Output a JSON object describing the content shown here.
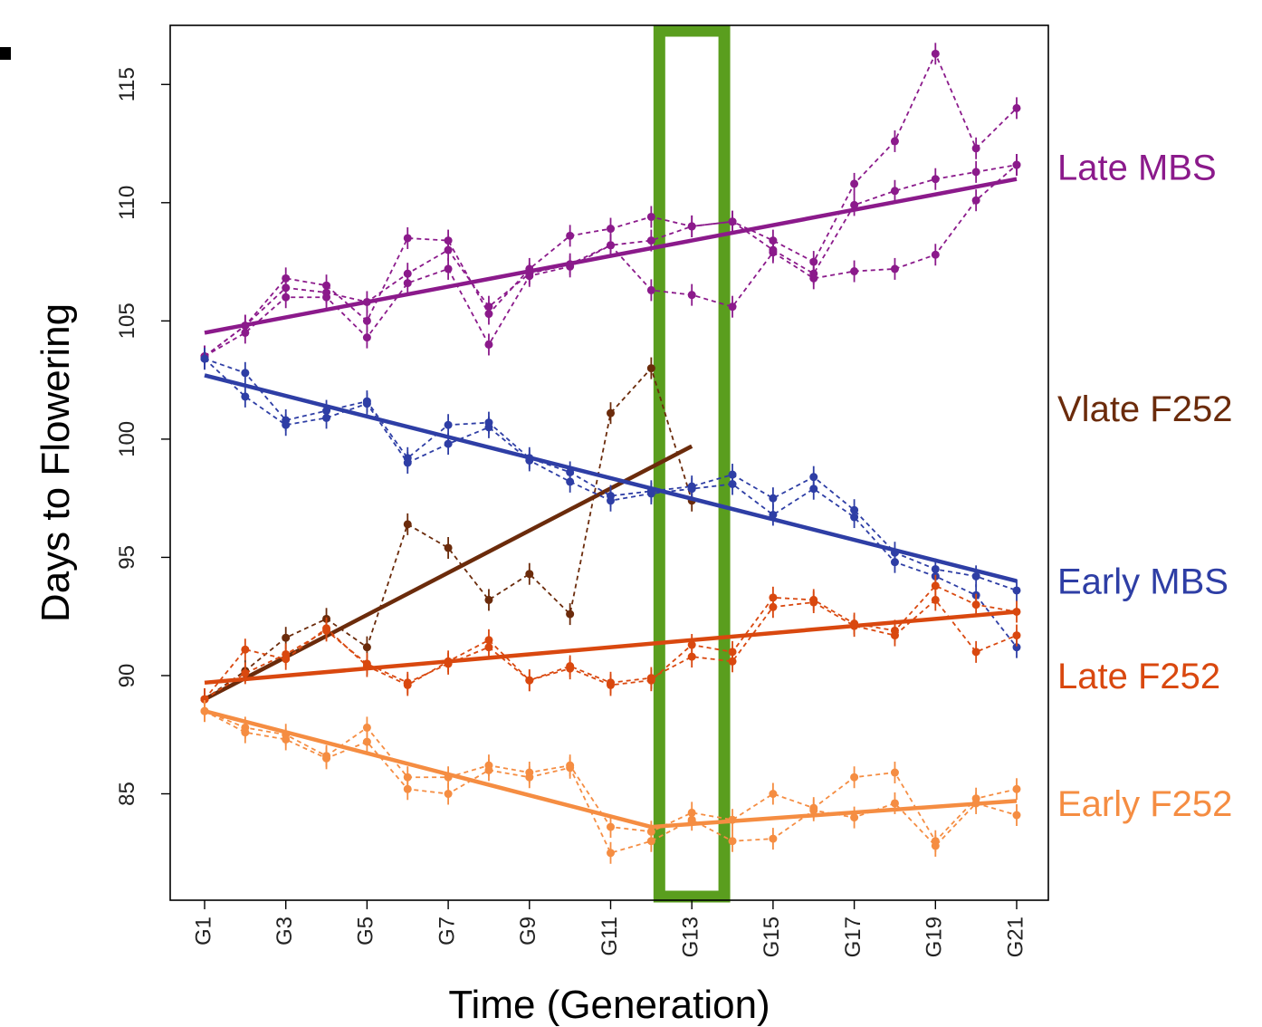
{
  "chart_data": {
    "type": "line",
    "xlabel": "Time (Generation)",
    "ylabel": "Days to Flowering",
    "x_ticks": [
      "G1",
      "G3",
      "G5",
      "G7",
      "G9",
      "G11",
      "G13",
      "G15",
      "G17",
      "G19",
      "G21"
    ],
    "x_range": [
      1,
      21
    ],
    "ylim": [
      80.5,
      117.5
    ],
    "y_ticks": [
      85,
      90,
      95,
      100,
      105,
      110,
      115
    ],
    "grid": false,
    "highlight": {
      "x_range": [
        12.2,
        13.8
      ],
      "color": "#5a9e1e"
    },
    "series": [
      {
        "name": "Late MBS",
        "color": "#8b1a8b",
        "trend": [
          [
            1,
            104.5
          ],
          [
            21,
            111.0
          ]
        ],
        "replicates": [
          {
            "x": [
              1,
              2,
              3,
              4,
              5,
              6,
              7,
              8,
              9,
              10,
              11,
              12,
              13,
              14,
              15,
              16,
              17,
              18,
              19,
              20,
              21
            ],
            "y": [
              103.5,
              104.8,
              106.8,
              106.5,
              105.0,
              108.5,
              108.4,
              105.3,
              107.2,
              108.6,
              108.9,
              109.4,
              109.0,
              109.2,
              108.4,
              107.5,
              110.8,
              112.6,
              116.3,
              112.3,
              114.0
            ]
          },
          {
            "x": [
              1,
              2,
              3,
              4,
              5,
              6,
              7,
              8,
              9,
              10,
              11,
              12,
              13,
              14,
              15,
              16,
              17,
              18,
              19,
              20,
              21
            ],
            "y": [
              103.5,
              104.5,
              106.0,
              106.0,
              104.3,
              106.6,
              107.2,
              104.0,
              106.9,
              107.3,
              108.2,
              106.3,
              106.1,
              105.6,
              107.9,
              106.8,
              107.1,
              107.2,
              107.8,
              110.1,
              111.6
            ]
          },
          {
            "x": [
              1,
              2,
              3,
              4,
              5,
              6,
              7,
              8,
              9,
              10,
              11,
              12,
              13,
              14,
              15,
              16,
              17,
              18,
              19,
              20,
              21
            ],
            "y": [
              103.5,
              104.8,
              106.4,
              106.2,
              105.8,
              107.0,
              108.0,
              105.6,
              107.0,
              107.4,
              108.2,
              108.4,
              109.0,
              109.2,
              108.0,
              107.0,
              109.9,
              110.5,
              111.0,
              111.3,
              111.6
            ]
          }
        ]
      },
      {
        "name": "Vlate F252",
        "color": "#6b2b0b",
        "trend": [
          [
            1,
            89.0
          ],
          [
            13,
            99.7
          ]
        ],
        "replicates": [
          {
            "x": [
              1,
              2,
              3,
              4,
              5,
              6,
              7,
              8,
              9,
              10,
              11,
              12,
              13
            ],
            "y": [
              89.0,
              90.2,
              91.6,
              92.4,
              91.2,
              96.4,
              95.4,
              93.2,
              94.3,
              92.6,
              101.1,
              103.0,
              97.4
            ]
          }
        ]
      },
      {
        "name": "Early MBS",
        "color": "#2e3ea5",
        "trend": [
          [
            1,
            102.7
          ],
          [
            21,
            94.0
          ]
        ],
        "replicates": [
          {
            "x": [
              1,
              2,
              3,
              4,
              5,
              6,
              7,
              8,
              9,
              10,
              11,
              12,
              13,
              14,
              15,
              16,
              17,
              18,
              19,
              20,
              21
            ],
            "y": [
              103.4,
              102.8,
              100.8,
              101.2,
              101.6,
              99.2,
              100.6,
              100.7,
              99.2,
              98.6,
              97.6,
              97.8,
              98.0,
              98.5,
              97.5,
              98.4,
              97.0,
              95.2,
              94.5,
              94.2,
              93.6
            ]
          },
          {
            "x": [
              1,
              2,
              3,
              4,
              5,
              6,
              7,
              8,
              9,
              10,
              11,
              12,
              13,
              14,
              15,
              16,
              17,
              18,
              19,
              20,
              21
            ],
            "y": [
              103.4,
              101.8,
              100.6,
              100.9,
              101.5,
              99.0,
              99.8,
              100.5,
              99.1,
              98.2,
              97.4,
              97.7,
              97.9,
              98.1,
              96.8,
              97.9,
              96.7,
              94.8,
              94.2,
              93.4,
              91.2
            ]
          }
        ]
      },
      {
        "name": "Late F252",
        "color": "#d9480f",
        "trend": [
          [
            1,
            89.7
          ],
          [
            21,
            92.7
          ]
        ],
        "replicates": [
          {
            "x": [
              1,
              2,
              3,
              4,
              5,
              6,
              7,
              8,
              9,
              10,
              11,
              12,
              13,
              14,
              15,
              16,
              17,
              18,
              19,
              20,
              21
            ],
            "y": [
              89.0,
              91.1,
              90.7,
              92.0,
              90.4,
              89.6,
              90.6,
              91.5,
              89.8,
              90.3,
              89.6,
              89.8,
              91.3,
              91.0,
              93.3,
              93.2,
              92.2,
              91.9,
              93.8,
              93.0,
              92.7
            ]
          },
          {
            "x": [
              1,
              2,
              3,
              4,
              5,
              6,
              7,
              8,
              9,
              10,
              11,
              12,
              13,
              14,
              15,
              16,
              17,
              18,
              19,
              20,
              21
            ],
            "y": [
              89.0,
              90.1,
              90.9,
              91.9,
              90.5,
              89.7,
              90.5,
              91.2,
              89.8,
              90.4,
              89.7,
              89.9,
              90.8,
              90.6,
              92.9,
              93.1,
              92.1,
              91.7,
              93.2,
              91.0,
              91.7
            ]
          }
        ]
      },
      {
        "name": "Early F252",
        "color": "#f58d42",
        "trend": [
          [
            1,
            88.5
          ],
          [
            12,
            83.6
          ],
          [
            21,
            84.7
          ]
        ],
        "replicates": [
          {
            "x": [
              1,
              2,
              3,
              4,
              5,
              6,
              7,
              8,
              9,
              10,
              11,
              12,
              13,
              14,
              15,
              16,
              17,
              18,
              19,
              20,
              21
            ],
            "y": [
              88.5,
              87.8,
              87.5,
              86.6,
              87.8,
              85.7,
              85.7,
              86.2,
              85.9,
              86.2,
              83.6,
              83.4,
              84.2,
              83.9,
              85.0,
              84.4,
              85.7,
              85.9,
              83.0,
              84.8,
              85.2
            ]
          },
          {
            "x": [
              1,
              2,
              3,
              4,
              5,
              6,
              7,
              8,
              9,
              10,
              11,
              12,
              13,
              14,
              15,
              16,
              17,
              18,
              19,
              20,
              21
            ],
            "y": [
              88.5,
              87.6,
              87.3,
              86.5,
              87.2,
              85.2,
              85.0,
              86.0,
              85.7,
              86.1,
              82.5,
              83.0,
              83.9,
              83.0,
              83.1,
              84.3,
              84.0,
              84.6,
              82.8,
              84.6,
              84.1
            ]
          }
        ]
      }
    ]
  }
}
